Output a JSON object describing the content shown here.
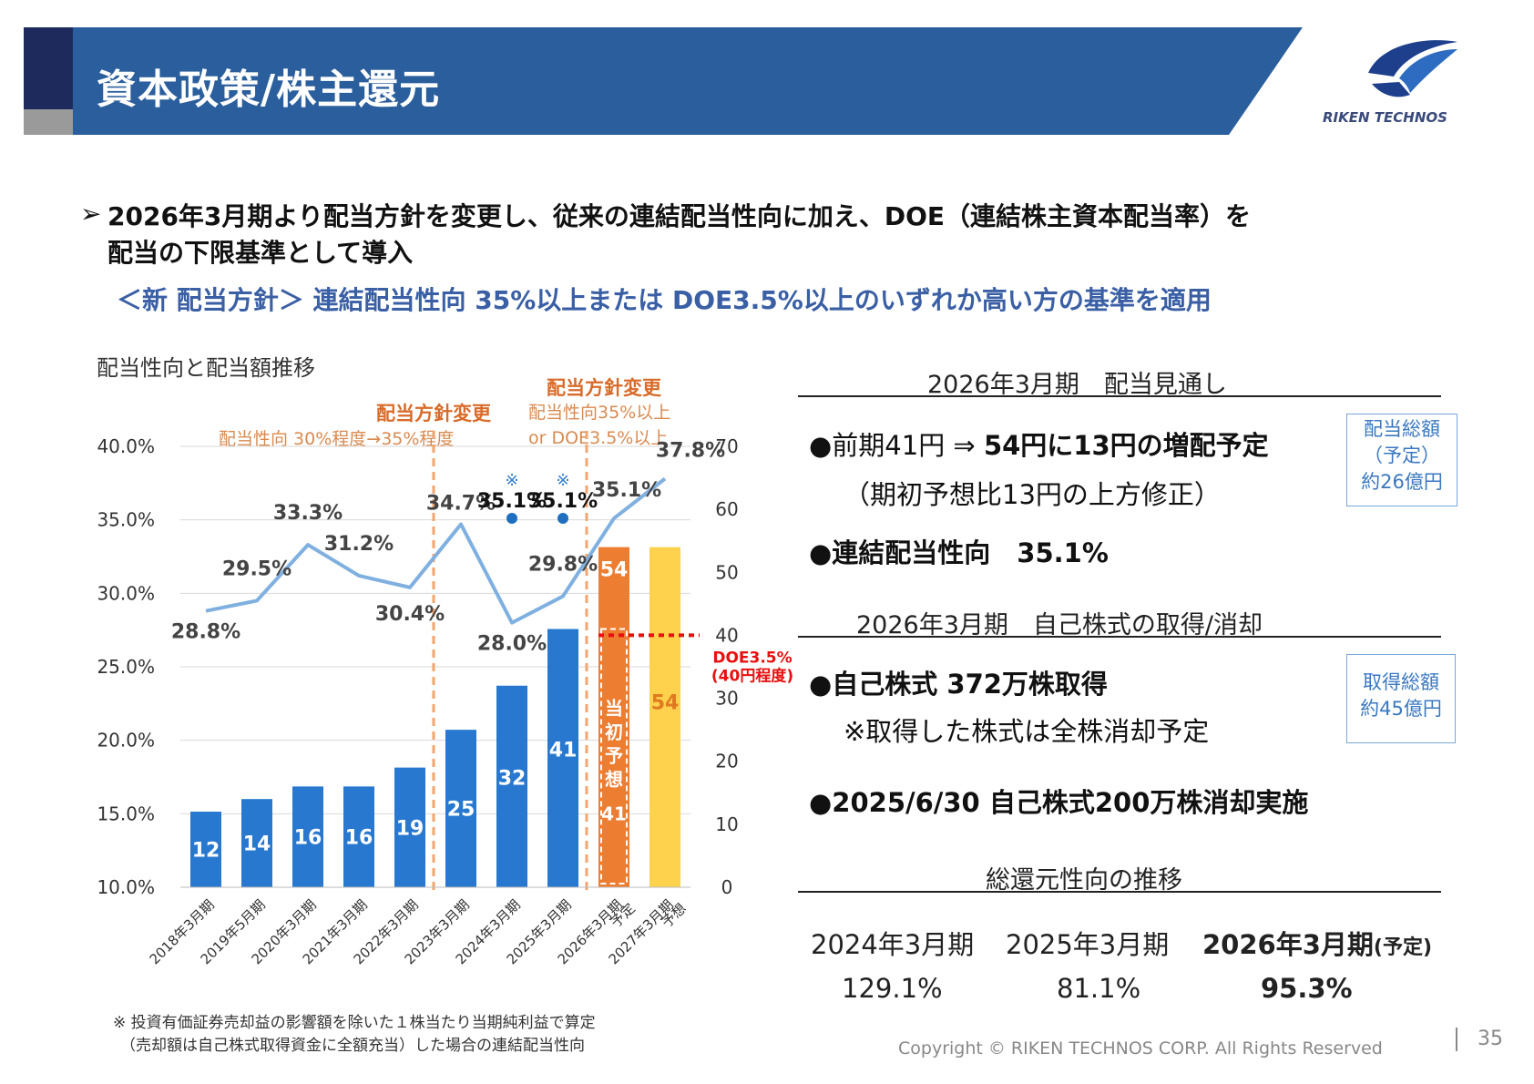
{
  "header": {
    "title": "資本政策/株主還元",
    "logo_text": "RIKEN TECHNOS"
  },
  "headline": {
    "arrow": "➢",
    "line1": "2026年3月期より配当方針を変更し、従来の連結配当性向に加え、DOE（連結株主資本配当率）を",
    "line2": "配当の下限基準として導入",
    "policy": "＜新 配当方針＞  連結配当性向 35%以上または DOE3.5%以上のいずれか高い方の基準を適用"
  },
  "chart_labels": {
    "title": "配当性向と配当額推移",
    "change1_head": "配当方針変更",
    "change1_sub": "配当性向 30%程度→35%程度",
    "change2_head": "配当方針変更",
    "change2_sub1": "配当性向35%以上",
    "change2_sub2": "or  DOE3.5%以上",
    "note_mark": "※",
    "doe_line1": "DOE3.5%",
    "doe_line2": "(40円程度)",
    "initial_forecast": "当初予想",
    "initial_forecast_value": "41",
    "footnote1": "※ 投資有価証券売却益の影響額を除いた１株当たり当期純利益で算定",
    "footnote2": "（売却額は自己株式取得資金に全額充当）した場合の連結配当性向"
  },
  "chart_data": {
    "type": "bar",
    "categories": [
      "2018年3月期",
      "2019年5月期",
      "2020年3月期",
      "2021年3月期",
      "2022年3月期",
      "2023年3月期",
      "2024年3月期",
      "2025年3月期",
      "2026年3月期\n予定",
      "2027年3月期\n予想"
    ],
    "series": [
      {
        "values": [
          12,
          14,
          16,
          16,
          19,
          25,
          32,
          41,
          54,
          54
        ],
        "axis": "right",
        "colors": [
          "#2878d0",
          "#2878d0",
          "#2878d0",
          "#2878d0",
          "#2878d0",
          "#2878d0",
          "#2878d0",
          "#2878d0",
          "#ed7d31",
          "#ffd24d"
        ]
      },
      {
        "values": [
          28.8,
          29.5,
          33.3,
          31.2,
          30.4,
          34.7,
          28.0,
          29.8,
          35.1,
          37.8
        ],
        "type": "line",
        "axis": "left",
        "color": "#7fb0e0"
      },
      {
        "values": [
          null,
          null,
          null,
          null,
          null,
          null,
          35.1,
          35.1,
          null,
          null
        ],
        "type": "scatter",
        "axis": "left",
        "color": "#1f6fc0"
      }
    ],
    "line_labels": [
      "28.8%",
      "29.5%",
      "33.3%",
      "31.2%",
      "30.4%",
      "34.7%",
      "28.0%",
      "29.8%",
      "35.1%",
      "37.8%"
    ],
    "scatter_labels": [
      "35.1%",
      "35.1%"
    ],
    "y_left_ticks": [
      "40.0%",
      "35.0%",
      "30.0%",
      "25.0%",
      "20.0%",
      "15.0%",
      "10.0%"
    ],
    "y_right_ticks": [
      "70",
      "60",
      "50",
      "40",
      "30",
      "20",
      "10",
      "0"
    ],
    "ylim_left": [
      10,
      40
    ],
    "ylim_right": [
      0,
      70
    ],
    "doe_reference_value": 40,
    "initial_forecast_bar": 41
  },
  "right_panel": {
    "sec1_title": "2026年3月期　配当見通し",
    "b1_line1_normal": "●前期41円 ⇒ ",
    "b1_line1_bold": "54円に13円の増配予定",
    "b1_line2": "（期初予想比13円の上方修正）",
    "b2": "●連結配当性向　35.1%",
    "box1_line1": "配当総額",
    "box1_line2": "（予定）",
    "box1_line3": "約26億円",
    "sec2_title": "2026年3月期　自己株式の取得/消却",
    "b3": "●自己株式 372万株取得",
    "b3_note": "※取得した株式は全株消却予定",
    "box2_line1": "取得総額",
    "box2_line2": "約45億円",
    "b4": "●2025/6/30 自己株式200万株消却実施",
    "sec3_title": "総還元性向の推移",
    "years": [
      "2024年3月期",
      "2025年3月期",
      "2026年3月期"
    ],
    "year3_suffix": "(予定)",
    "values": [
      "129.1%",
      "81.1%",
      "95.3%"
    ]
  },
  "footer": {
    "copyright": "Copyright © RIKEN TECHNOS CORP. All Rights Reserved",
    "page": "35"
  }
}
